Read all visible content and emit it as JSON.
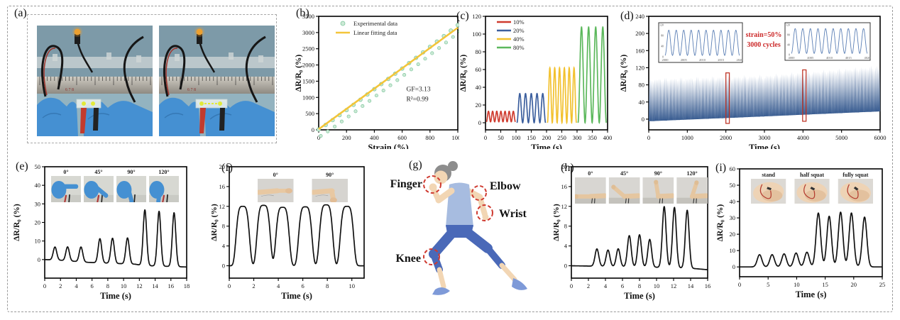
{
  "figure": {
    "background": "#ffffff",
    "border_color": "#9a9a9a"
  },
  "panels": {
    "a": {
      "label": "(a)"
    },
    "b": {
      "label": "(b)"
    },
    "c": {
      "label": "(c)"
    },
    "d": {
      "label": "(d)"
    },
    "e": {
      "label": "(e)"
    },
    "f": {
      "label": "(f)"
    },
    "g": {
      "label": "(g)",
      "annotations": [
        {
          "text": "Finger"
        },
        {
          "text": "Elbow"
        },
        {
          "text": "Wrist"
        },
        {
          "text": "Knee"
        }
      ]
    },
    "h": {
      "label": "(h)"
    },
    "i": {
      "label": "(i)"
    }
  },
  "photo_palette": {
    "background_top": "#7d9aa8",
    "background_bottom": "#93b3c0",
    "shelf_strip": "#c6cfd1",
    "glove_blue": "#4590d2",
    "glove_shadow": "#2f6da8",
    "wire_black": "#161616",
    "wire_red": "#a03a32",
    "clip_red": "#c23b2e",
    "clip_black": "#222222",
    "ruler_light": "#cfcbc2",
    "ruler_dark": "#8e8a82",
    "sensor_body": "#e9efec",
    "marker_yellow": "#e2ea3a",
    "led_orange": "#f0a02c"
  },
  "runner_palette": {
    "skin": "#f2d6b4",
    "hair": "#8d8d8d",
    "top": "#a7bce0",
    "pants": "#4a69b8",
    "shoes": "#7e9ad8",
    "dashed_circle": "#cf3a30"
  },
  "chart_data": [
    {
      "id": "b",
      "panel": "(b)",
      "type": "scatter",
      "xlabel": "Strain (%)",
      "ylabel": "ΔR/R₀ (%)",
      "xlim": [
        0,
        1000
      ],
      "ylim": [
        0,
        3500
      ],
      "xticks": [
        0,
        200,
        400,
        600,
        800,
        1000
      ],
      "yticks": [
        0,
        500,
        1000,
        1500,
        2000,
        2500,
        3000,
        3500
      ],
      "legend": [
        {
          "label": "Experimental data",
          "marker": "circle",
          "color": "#cde9d6",
          "edge": "#7cc79c"
        },
        {
          "label": "Linear fitting data",
          "marker": "line",
          "color": "#f3c53a"
        }
      ],
      "annotations": [
        "GF=3.13",
        "R²=0.99"
      ],
      "fit_line": {
        "x": [
          0,
          1000
        ],
        "y": [
          20,
          3150
        ]
      },
      "points": [
        [
          0,
          10
        ],
        [
          50,
          150
        ],
        [
          100,
          300
        ],
        [
          150,
          455
        ],
        [
          200,
          610
        ],
        [
          250,
          770
        ],
        [
          300,
          930
        ],
        [
          350,
          1090
        ],
        [
          400,
          1255
        ],
        [
          450,
          1410
        ],
        [
          500,
          1570
        ],
        [
          550,
          1730
        ],
        [
          600,
          1890
        ],
        [
          650,
          2060
        ],
        [
          700,
          2220
        ],
        [
          750,
          2390
        ],
        [
          800,
          2560
        ],
        [
          850,
          2720
        ],
        [
          900,
          2890
        ],
        [
          950,
          3060
        ],
        [
          1000,
          3230
        ]
      ]
    },
    {
      "id": "c",
      "panel": "(c)",
      "type": "cycles",
      "xlabel": "Time (s)",
      "ylabel": "ΔR/R₀ (%)",
      "xlim": [
        0,
        400
      ],
      "ylim": [
        -8,
        120
      ],
      "xticks": [
        0,
        50,
        100,
        150,
        200,
        250,
        300,
        350,
        400
      ],
      "yticks": [
        0,
        20,
        40,
        60,
        80,
        100,
        120
      ],
      "series": [
        {
          "name": "10%",
          "color": "#cf3b2e",
          "t_start": 3,
          "t_end": 98,
          "cycles": 7,
          "min": 1,
          "max": 13
        },
        {
          "name": "20%",
          "color": "#3c5f9e",
          "t_start": 103,
          "t_end": 197,
          "cycles": 5,
          "min": 0,
          "max": 33
        },
        {
          "name": "40%",
          "color": "#f2c12e",
          "t_start": 203,
          "t_end": 298,
          "cycles": 6,
          "min": 0,
          "max": 62
        },
        {
          "name": "80%",
          "color": "#5cb85c",
          "t_start": 303,
          "t_end": 396,
          "cycles": 4,
          "min": 0,
          "max": 108
        }
      ]
    },
    {
      "id": "d",
      "panel": "(d)",
      "type": "band",
      "xlabel": "Time (s)",
      "ylabel": "ΔR/R₀ (%)",
      "xlim": [
        0,
        6000
      ],
      "ylim": [
        -25,
        240
      ],
      "xticks": [
        0,
        1000,
        2000,
        3000,
        4000,
        5000,
        6000
      ],
      "yticks": [
        0,
        40,
        80,
        120,
        160,
        200,
        240
      ],
      "band_color": "#3b5e92",
      "envelope_top": [
        [
          0,
          92
        ],
        [
          3000,
          100
        ],
        [
          6000,
          122
        ]
      ],
      "envelope_bottom": [
        [
          0,
          -5
        ],
        [
          3000,
          5
        ],
        [
          6000,
          18
        ]
      ],
      "n_cycles_drawn": 160,
      "annotation_lines": [
        "strain=50%",
        "3000 cycles"
      ],
      "annotation_color": "#cc2b2b",
      "highlight_boxes": [
        {
          "t0": 2000,
          "t1": 2090,
          "y0": -10,
          "y1": 108
        },
        {
          "t0": 3990,
          "t1": 4080,
          "y0": -5,
          "y1": 115
        }
      ],
      "insets": [
        {
          "xticklabels": [
            "2000",
            "2005",
            "2010",
            "2015",
            "2020"
          ],
          "yticklabels": [
            "0",
            "40",
            "80",
            "120"
          ],
          "cycles": 10,
          "ymin": 5,
          "ymax": 100
        },
        {
          "xticklabels": [
            "4000",
            "4005",
            "4010",
            "4015",
            "4020"
          ],
          "yticklabels": [
            "0",
            "40",
            "80",
            "120"
          ],
          "cycles": 10,
          "ymin": 5,
          "ymax": 105
        }
      ],
      "inset_line_color": "#5b7fb5"
    },
    {
      "id": "e",
      "panel": "(e)",
      "type": "spikes",
      "xlabel": "Time (s)",
      "ylabel": "ΔR/R₀ (%)",
      "xlim": [
        0,
        18
      ],
      "ylim": [
        -10,
        50
      ],
      "xticks": [
        0,
        2,
        4,
        6,
        8,
        10,
        12,
        14,
        16,
        18
      ],
      "yticks": [
        0,
        10,
        20,
        30,
        40,
        50
      ],
      "line_color": "#111111",
      "peaks": [
        [
          1.3,
          7
        ],
        [
          2.9,
          7.5
        ],
        [
          4.6,
          8
        ],
        [
          7.0,
          13
        ],
        [
          8.6,
          13.5
        ],
        [
          10.5,
          14
        ],
        [
          12.7,
          30
        ],
        [
          14.5,
          29.5
        ],
        [
          16.4,
          29
        ]
      ],
      "baseline": [
        [
          0,
          0
        ],
        [
          1.8,
          -0.3
        ],
        [
          5.5,
          -1.5
        ],
        [
          11.5,
          -2.5
        ],
        [
          12.4,
          -3.2
        ],
        [
          18,
          -4
        ]
      ],
      "spike_width_s": 0.22,
      "spike_power": 2,
      "insets": {
        "kind": "finger",
        "labels": [
          "0°",
          "45°",
          "90°",
          "120°"
        ]
      }
    },
    {
      "id": "f",
      "panel": "(f)",
      "type": "spikes",
      "xlabel": "Time (s)",
      "ylabel": "ΔR/R₀ (%)",
      "xlim": [
        0,
        11
      ],
      "ylim": [
        -2.5,
        20
      ],
      "xticks": [
        0,
        2,
        4,
        6,
        8,
        10
      ],
      "yticks": [
        0,
        4,
        8,
        12,
        16,
        20
      ],
      "line_color": "#111111",
      "peaks": [
        [
          1.1,
          12
        ],
        [
          2.8,
          12.2
        ],
        [
          4.35,
          11.8
        ],
        [
          6.2,
          11.9
        ],
        [
          7.9,
          12.3
        ],
        [
          9.6,
          12
        ]
      ],
      "baseline": [
        [
          0,
          0
        ],
        [
          11,
          0
        ]
      ],
      "spike_width_s": 0.6,
      "spike_power": 4,
      "insets": {
        "kind": "wrist",
        "labels": [
          "0°",
          "90°"
        ]
      }
    },
    {
      "id": "h",
      "panel": "(h)",
      "type": "spikes",
      "xlabel": "Time (s)",
      "ylabel": "ΔR/R₀ (%)",
      "xlim": [
        0,
        16
      ],
      "ylim": [
        -2.5,
        20
      ],
      "xticks": [
        0,
        2,
        4,
        6,
        8,
        10,
        12,
        14,
        16
      ],
      "yticks": [
        0,
        4,
        8,
        12,
        16,
        20
      ],
      "line_color": "#111111",
      "peaks": [
        [
          3.0,
          3.5
        ],
        [
          4.3,
          3.3
        ],
        [
          5.5,
          3.6
        ],
        [
          6.8,
          6.3
        ],
        [
          8.0,
          6.5
        ],
        [
          9.2,
          5.6
        ],
        [
          10.9,
          12.3
        ],
        [
          12.1,
          12.2
        ],
        [
          13.6,
          11.7
        ]
      ],
      "baseline": [
        [
          0,
          0
        ],
        [
          10,
          -0.3
        ],
        [
          14,
          -0.5
        ],
        [
          16,
          -0.8
        ]
      ],
      "spike_width_s": 0.22,
      "spike_power": 2,
      "insets": {
        "kind": "elbow",
        "labels": [
          "0°",
          "45°",
          "90°",
          "120°"
        ]
      }
    },
    {
      "id": "i",
      "panel": "(i)",
      "type": "spikes",
      "xlabel": "Time (s)",
      "ylabel": "ΔR/R₀ (%)",
      "xlim": [
        0,
        25
      ],
      "ylim": [
        -6,
        60
      ],
      "xticks": [
        0,
        5,
        10,
        15,
        20,
        25
      ],
      "yticks": [
        0,
        10,
        20,
        30,
        40,
        50,
        60
      ],
      "line_color": "#111111",
      "peaks": [
        [
          3.5,
          7.5
        ],
        [
          5.7,
          7.5
        ],
        [
          7.8,
          8
        ],
        [
          9.9,
          8.5
        ],
        [
          11.8,
          9
        ],
        [
          13.8,
          33
        ],
        [
          15.7,
          31
        ],
        [
          17.7,
          33.5
        ],
        [
          19.6,
          33
        ],
        [
          21.9,
          30.5
        ]
      ],
      "baseline": [
        [
          0,
          0
        ],
        [
          25,
          0
        ]
      ],
      "spike_width_s": 0.4,
      "spike_power": 2,
      "insets": {
        "kind": "knee",
        "labels": [
          "stand",
          "half squat",
          "fully squat"
        ]
      }
    }
  ]
}
